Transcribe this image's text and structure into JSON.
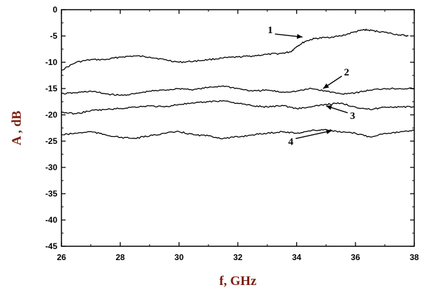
{
  "chart_data": {
    "type": "line",
    "title": "",
    "xlabel": "f, GHz",
    "ylabel": "A , dB",
    "xlim": [
      26,
      38
    ],
    "ylim": [
      -45,
      0
    ],
    "x_ticks": [
      26,
      28,
      30,
      32,
      34,
      36,
      38
    ],
    "y_ticks": [
      0,
      -5,
      -10,
      -15,
      -20,
      -25,
      -30,
      -35,
      -40,
      -45
    ],
    "grid": false,
    "line_color": "#000000",
    "axis_title_color": "#7a1f0e",
    "series": [
      {
        "name": "1",
        "x": [
          26.0,
          26.5,
          27.0,
          27.5,
          28.0,
          28.5,
          29.0,
          29.5,
          30.0,
          30.5,
          31.0,
          31.5,
          32.0,
          32.5,
          33.0,
          33.5,
          33.8,
          34.0,
          34.3,
          34.6,
          35.0,
          35.5,
          36.0,
          36.3,
          36.6,
          37.0,
          37.5,
          37.8
        ],
        "y": [
          -11.5,
          -10.0,
          -9.5,
          -9.5,
          -9.0,
          -8.8,
          -9.0,
          -9.5,
          -10.0,
          -9.8,
          -9.5,
          -9.2,
          -9.0,
          -8.8,
          -8.5,
          -8.3,
          -8.0,
          -7.0,
          -6.0,
          -5.5,
          -5.3,
          -5.0,
          -4.2,
          -3.8,
          -4.0,
          -4.3,
          -4.8,
          -5.0
        ]
      },
      {
        "name": "2",
        "x": [
          26.0,
          26.5,
          27.0,
          27.5,
          28.0,
          28.5,
          29.0,
          29.5,
          30.0,
          30.5,
          31.0,
          31.5,
          32.0,
          32.5,
          33.0,
          33.5,
          34.0,
          34.5,
          35.0,
          35.5,
          36.0,
          36.5,
          37.0,
          37.5,
          38.0
        ],
        "y": [
          -16.0,
          -15.8,
          -15.5,
          -16.0,
          -16.3,
          -16.0,
          -15.5,
          -15.3,
          -15.0,
          -15.2,
          -14.8,
          -14.5,
          -15.0,
          -15.5,
          -15.3,
          -15.7,
          -15.5,
          -15.0,
          -15.5,
          -16.0,
          -15.8,
          -15.3,
          -15.0,
          -15.0,
          -15.0
        ]
      },
      {
        "name": "3",
        "x": [
          26.0,
          26.5,
          27.0,
          27.5,
          28.0,
          28.5,
          29.0,
          29.5,
          30.0,
          30.5,
          31.0,
          31.5,
          32.0,
          32.5,
          33.0,
          33.5,
          34.0,
          34.5,
          35.0,
          35.5,
          36.0,
          36.5,
          37.0,
          37.5,
          38.0
        ],
        "y": [
          -19.5,
          -19.8,
          -19.2,
          -19.0,
          -18.8,
          -18.5,
          -18.3,
          -18.5,
          -18.0,
          -17.8,
          -17.5,
          -17.3,
          -17.8,
          -18.3,
          -18.5,
          -18.2,
          -18.8,
          -18.5,
          -18.0,
          -17.8,
          -18.5,
          -19.0,
          -18.5,
          -18.5,
          -18.5
        ]
      },
      {
        "name": "4",
        "x": [
          26.0,
          26.5,
          27.0,
          27.5,
          28.0,
          28.5,
          29.0,
          29.5,
          30.0,
          30.5,
          31.0,
          31.5,
          32.0,
          32.5,
          33.0,
          33.5,
          34.0,
          34.5,
          35.0,
          35.5,
          36.0,
          36.5,
          37.0,
          37.5,
          38.0
        ],
        "y": [
          -23.8,
          -23.5,
          -23.2,
          -23.8,
          -24.3,
          -24.5,
          -24.0,
          -23.5,
          -23.2,
          -23.8,
          -24.0,
          -24.5,
          -24.2,
          -23.8,
          -23.5,
          -23.2,
          -23.5,
          -23.0,
          -22.8,
          -23.3,
          -23.5,
          -24.2,
          -23.5,
          -23.3,
          -23.0
        ]
      }
    ],
    "annotations": [
      {
        "text": "1",
        "x": 33.1,
        "y": -4.5,
        "arrow_to": [
          34.2,
          -5.2
        ]
      },
      {
        "text": "2",
        "x": 35.7,
        "y": -12.5,
        "arrow_to": [
          34.9,
          -15.0
        ]
      },
      {
        "text": "3",
        "x": 35.9,
        "y": -20.8,
        "arrow_to": [
          35.0,
          -18.3
        ]
      },
      {
        "text": "4",
        "x": 33.8,
        "y": -25.7,
        "arrow_to": [
          35.2,
          -23.0
        ]
      }
    ]
  }
}
